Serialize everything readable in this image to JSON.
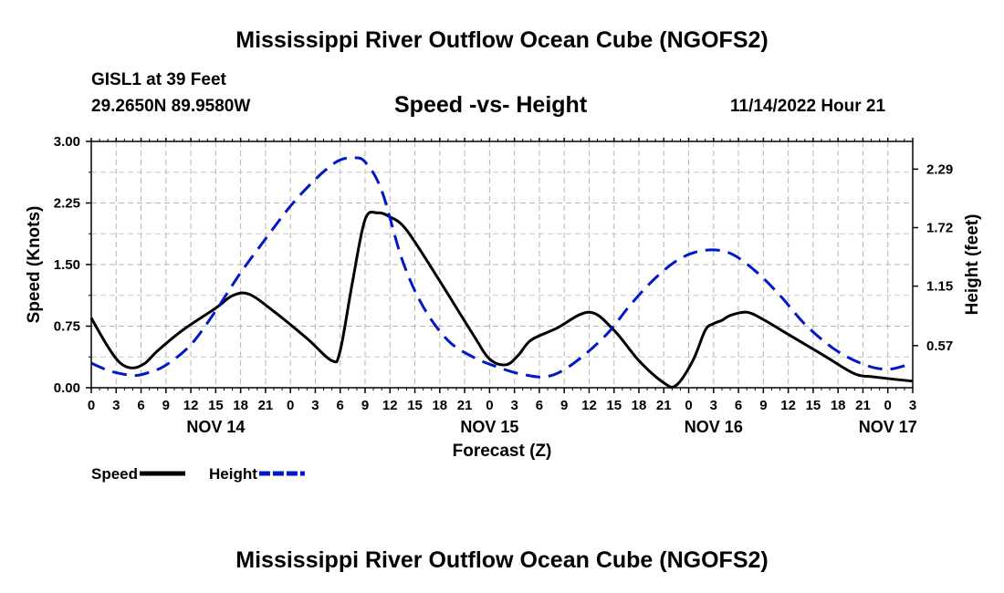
{
  "header": {
    "title": "Mississippi River Outflow Ocean Cube (NGOFS2)",
    "station": "GISL1 at 39 Feet",
    "coords": "29.2650N  89.9580W",
    "subtitle": "Speed -vs- Height",
    "datetime": "11/14/2022 Hour 21"
  },
  "footer": {
    "title": "Mississippi River Outflow Ocean Cube (NGOFS2)"
  },
  "chart_data": {
    "type": "line",
    "title": "Speed -vs- Height",
    "xlabel": "Forecast (Z)",
    "ylabel": "Speed (Knots)",
    "y2label": "Height (feet)",
    "x_unit": "hours since NOV 14 00Z",
    "xlim": [
      -21,
      78
    ],
    "ylim": [
      0,
      3
    ],
    "y2lim": [
      0.16,
      2.56
    ],
    "x_ticks": [
      -21,
      -18,
      -15,
      -12,
      -9,
      -6,
      -3,
      0,
      3,
      6,
      9,
      12,
      15,
      18,
      21,
      24,
      27,
      30,
      33,
      36,
      39,
      42,
      45,
      48,
      51,
      54,
      57,
      60,
      63,
      66,
      69,
      72,
      75,
      78
    ],
    "x_tick_labels": [
      "0",
      "3",
      "6",
      "9",
      "12",
      "15",
      "18",
      "21",
      "0",
      "3",
      "6",
      "9",
      "12",
      "15",
      "18",
      "21",
      "0",
      "3",
      "6",
      "9",
      "12",
      "15",
      "18",
      "21",
      "0",
      "3",
      "6",
      "9",
      "12",
      "15",
      "18",
      "21",
      "0",
      "3"
    ],
    "day_labels": [
      {
        "text": "NOV 14",
        "x": -6
      },
      {
        "text": "NOV 15",
        "x": 27
      },
      {
        "text": "NOV 16",
        "x": 54
      },
      {
        "text": "NOV 17",
        "x": 75
      }
    ],
    "y_ticks": [
      0,
      0.75,
      1.5,
      2.25,
      3
    ],
    "y_tick_labels": [
      "0.00",
      "0.75",
      "1.50",
      "2.25",
      "3.00"
    ],
    "y2_ticks": [
      0.57,
      1.15,
      1.72,
      2.29
    ],
    "y2_tick_labels": [
      "0.57",
      "1.15",
      "1.72",
      "2.29"
    ],
    "grid": true,
    "series": [
      {
        "name": "Speed",
        "axis": "left",
        "color": "#000000",
        "dash": "solid",
        "x": [
          -21,
          -19,
          -17.5,
          -16,
          -14.5,
          -13,
          -10,
          -6,
          -4,
          -2,
          1,
          5,
          8,
          9,
          10.5,
          12,
          13.5,
          15,
          17,
          21,
          25,
          27,
          29,
          30.5,
          32,
          35,
          39,
          42,
          45,
          48,
          49.5,
          51.5,
          53,
          54,
          55,
          56,
          58,
          60,
          62.5,
          65,
          67.5,
          71,
          73.5,
          78
        ],
        "y": [
          0.85,
          0.5,
          0.3,
          0.24,
          0.3,
          0.45,
          0.7,
          0.97,
          1.12,
          1.14,
          0.93,
          0.6,
          0.33,
          0.45,
          1.3,
          2.05,
          2.13,
          2.08,
          1.92,
          1.3,
          0.65,
          0.35,
          0.28,
          0.4,
          0.58,
          0.72,
          0.92,
          0.7,
          0.33,
          0.06,
          0.03,
          0.33,
          0.7,
          0.78,
          0.82,
          0.88,
          0.92,
          0.83,
          0.68,
          0.53,
          0.38,
          0.17,
          0.13,
          0.08
        ]
      },
      {
        "name": "Height",
        "axis": "right",
        "color": "#0018c8",
        "dash": "dashed",
        "x": [
          -21,
          -19,
          -17,
          -15.5,
          -14,
          -12,
          -9,
          -6,
          -3,
          0,
          3,
          5.5,
          7.5,
          9,
          10.5,
          12,
          14,
          16.5,
          19,
          22,
          25,
          28,
          31,
          34,
          37,
          41,
          44,
          47,
          50,
          53,
          56,
          59,
          62,
          65,
          68.5,
          72,
          75,
          78
        ],
        "y": [
          0.4,
          0.33,
          0.29,
          0.28,
          0.31,
          0.38,
          0.58,
          0.91,
          1.28,
          1.61,
          1.93,
          2.15,
          2.3,
          2.38,
          2.4,
          2.36,
          2.08,
          1.4,
          0.95,
          0.62,
          0.46,
          0.36,
          0.29,
          0.27,
          0.39,
          0.67,
          0.97,
          1.23,
          1.42,
          1.5,
          1.47,
          1.3,
          1.06,
          0.78,
          0.54,
          0.39,
          0.34,
          0.4
        ]
      }
    ],
    "legend": [
      {
        "label": "Speed",
        "color": "#000000",
        "dash": "solid"
      },
      {
        "label": "Height",
        "color": "#0018c8",
        "dash": "dashed"
      }
    ],
    "legend_position": "bottom-left"
  }
}
